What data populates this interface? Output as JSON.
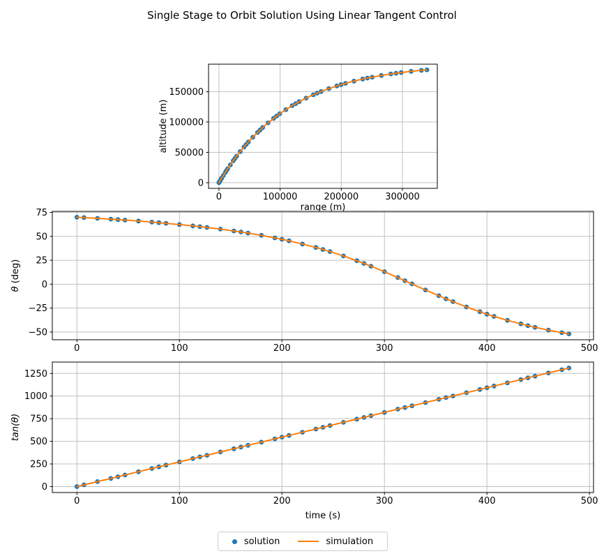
{
  "figure": {
    "title": "Single Stage to Orbit Solution Using Linear Tangent Control",
    "background": "#ffffff"
  },
  "colors": {
    "solution": "#1f77b4",
    "simulation": "#ff7f0e",
    "grid": "#c0c0c0",
    "spine": "#000000",
    "text": "#000000"
  },
  "legend": {
    "items": [
      {
        "label": "solution",
        "marker": "dot",
        "color": "#1f77b4"
      },
      {
        "label": "simulation",
        "marker": "line",
        "color": "#ff7f0e"
      }
    ]
  },
  "chart_data": [
    {
      "name": "altitude-vs-range",
      "type": "scatter",
      "xlabel": "range (m)",
      "ylabel_parts": [
        {
          "text": "altitude (m)",
          "italic": false
        }
      ],
      "xlim": [
        -17000,
        357000
      ],
      "ylim": [
        -9300,
        195300
      ],
      "xticks": [
        0,
        100000,
        200000,
        300000
      ],
      "yticks": [
        0,
        50000,
        100000,
        150000
      ],
      "grid": true,
      "x": [
        0,
        130,
        950,
        2420,
        3430,
        4590,
        7260,
        10450,
        12360,
        14400,
        18670,
        23390,
        26150,
        29000,
        34790,
        41040,
        44530,
        48150,
        55380,
        63060,
        67290,
        71650,
        80270,
        89330,
        94290,
        99360,
        109350,
        119770,
        125440,
        131220,
        142510,
        154240,
        160590,
        167050,
        179650,
        192660,
        199680,
        206820,
        220690,
        234970,
        242660,
        250450,
        265580,
        281110,
        289450,
        297910,
        314260,
        331010,
        340000
      ],
      "y": [
        0,
        230,
        1620,
        4080,
        5760,
        7680,
        12000,
        17050,
        19990,
        23090,
        29400,
        36100,
        39900,
        43720,
        51220,
        58890,
        62990,
        67110,
        74980,
        82810,
        86910,
        90990,
        98580,
        105980,
        109780,
        113520,
        120380,
        126970,
        130280,
        133520,
        139390,
        144890,
        147640,
        150290,
        155060,
        159470,
        161630,
        163720,
        167420,
        170770,
        172410,
        173970,
        176710,
        179180,
        180380,
        181500,
        183440,
        185180,
        186000
      ],
      "series": [
        {
          "name": "solution",
          "kind": "scatter",
          "color": "#1f77b4"
        },
        {
          "name": "simulation",
          "kind": "line",
          "color": "#ff7f0e"
        }
      ]
    },
    {
      "name": "theta-vs-time",
      "type": "scatter",
      "xlabel": "",
      "ylabel_parts": [
        {
          "text": "θ",
          "italic": true
        },
        {
          "text": " (deg)",
          "italic": false
        }
      ],
      "xlim": [
        -24,
        504
      ],
      "ylim": [
        -58.1,
        76.1
      ],
      "xticks": [
        0,
        100,
        200,
        300,
        400,
        500
      ],
      "yticks": [
        -50,
        -25,
        0,
        25,
        50,
        75
      ],
      "grid": true,
      "x": [
        0,
        6.9,
        20,
        33.1,
        40,
        46.9,
        60,
        73.1,
        80,
        86.9,
        100,
        113.1,
        120,
        126.9,
        140,
        153.1,
        160,
        166.9,
        180,
        193.1,
        200,
        206.9,
        220,
        233.1,
        240,
        246.9,
        260,
        273.1,
        280,
        286.9,
        300,
        313.1,
        320,
        326.9,
        340,
        353.1,
        360,
        366.9,
        380,
        393.1,
        400,
        406.9,
        420,
        433.1,
        440,
        446.9,
        460,
        473.1,
        480
      ],
      "y": [
        70,
        69.6,
        68.8,
        68,
        67.5,
        67,
        66,
        64.9,
        64.3,
        63.6,
        62.3,
        60.9,
        60.1,
        59.3,
        57.6,
        55.6,
        54.6,
        53.4,
        51.1,
        48.4,
        46.9,
        45.3,
        42,
        38.4,
        36.3,
        34.1,
        29.5,
        24.5,
        21.7,
        18.8,
        13,
        6.9,
        3.6,
        0.3,
        -6,
        -12.1,
        -15.3,
        -18.3,
        -23.8,
        -28.8,
        -31.3,
        -33.7,
        -37.8,
        -41.5,
        -43.4,
        -45.1,
        -48,
        -50.7,
        -52
      ],
      "series": [
        {
          "name": "solution",
          "kind": "scatter",
          "color": "#1f77b4"
        },
        {
          "name": "simulation",
          "kind": "line",
          "color": "#ff7f0e"
        }
      ]
    },
    {
      "name": "tan-theta-vs-time",
      "type": "scatter",
      "xlabel": "time (s)",
      "ylabel_parts": [
        {
          "text": "tan(θ)",
          "italic": true
        }
      ],
      "xlim": [
        -24,
        504
      ],
      "ylim": [
        -65.5,
        1375.5
      ],
      "xticks": [
        0,
        100,
        200,
        300,
        400,
        500
      ],
      "yticks": [
        0,
        250,
        500,
        750,
        1000,
        1250
      ],
      "grid": true,
      "x": [
        0,
        6.9,
        20,
        33.1,
        40,
        46.9,
        60,
        73.1,
        80,
        86.9,
        100,
        113.1,
        120,
        126.9,
        140,
        153.1,
        160,
        166.9,
        180,
        193.1,
        200,
        206.9,
        220,
        233.1,
        240,
        246.9,
        260,
        273.1,
        280,
        286.9,
        300,
        313.1,
        320,
        326.9,
        340,
        353.1,
        360,
        366.9,
        380,
        393.1,
        400,
        406.9,
        420,
        433.1,
        440,
        446.9,
        460,
        473.1,
        480
      ],
      "y": [
        0,
        19,
        55,
        90,
        109,
        128,
        164,
        200,
        218,
        237,
        273,
        309,
        328,
        346,
        382,
        418,
        437,
        456,
        491,
        527,
        546,
        565,
        600,
        636,
        655,
        674,
        710,
        745,
        764,
        783,
        819,
        855,
        873,
        892,
        928,
        964,
        983,
        1001,
        1037,
        1073,
        1092,
        1111,
        1146,
        1182,
        1201,
        1220,
        1255,
        1291,
        1310
      ],
      "series": [
        {
          "name": "solution",
          "kind": "scatter",
          "color": "#1f77b4"
        },
        {
          "name": "simulation",
          "kind": "line",
          "color": "#ff7f0e"
        }
      ]
    }
  ]
}
